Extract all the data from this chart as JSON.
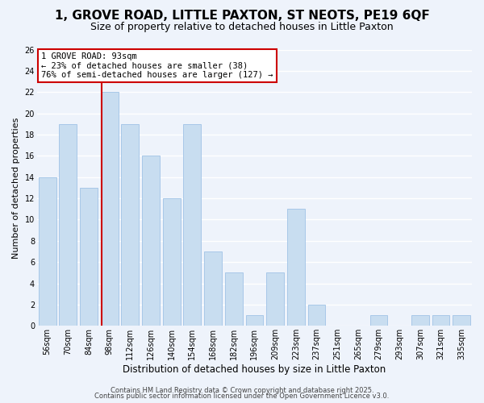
{
  "title": "1, GROVE ROAD, LITTLE PAXTON, ST NEOTS, PE19 6QF",
  "subtitle": "Size of property relative to detached houses in Little Paxton",
  "xlabel": "Distribution of detached houses by size in Little Paxton",
  "ylabel": "Number of detached properties",
  "bar_color": "#c8ddf0",
  "bar_edge_color": "#a8c8e8",
  "background_color": "#eef3fb",
  "grid_color": "#ffffff",
  "categories": [
    "56sqm",
    "70sqm",
    "84sqm",
    "98sqm",
    "112sqm",
    "126sqm",
    "140sqm",
    "154sqm",
    "168sqm",
    "182sqm",
    "196sqm",
    "209sqm",
    "223sqm",
    "237sqm",
    "251sqm",
    "265sqm",
    "279sqm",
    "293sqm",
    "307sqm",
    "321sqm",
    "335sqm"
  ],
  "values": [
    14,
    19,
    13,
    22,
    19,
    16,
    12,
    19,
    7,
    5,
    1,
    5,
    11,
    2,
    0,
    0,
    1,
    0,
    1,
    1,
    1
  ],
  "ylim": [
    0,
    26
  ],
  "yticks": [
    0,
    2,
    4,
    6,
    8,
    10,
    12,
    14,
    16,
    18,
    20,
    22,
    24,
    26
  ],
  "vline_color": "#cc0000",
  "vline_pos": 2.64,
  "annotation_title": "1 GROVE ROAD: 93sqm",
  "annotation_line1": "← 23% of detached houses are smaller (38)",
  "annotation_line2": "76% of semi-detached houses are larger (127) →",
  "annotation_box_color": "#ffffff",
  "annotation_border_color": "#cc0000",
  "footer1": "Contains HM Land Registry data © Crown copyright and database right 2025.",
  "footer2": "Contains public sector information licensed under the Open Government Licence v3.0.",
  "title_fontsize": 11,
  "subtitle_fontsize": 9,
  "xlabel_fontsize": 8.5,
  "ylabel_fontsize": 8,
  "tick_fontsize": 7,
  "annotation_fontsize": 7.5,
  "footer_fontsize": 6
}
